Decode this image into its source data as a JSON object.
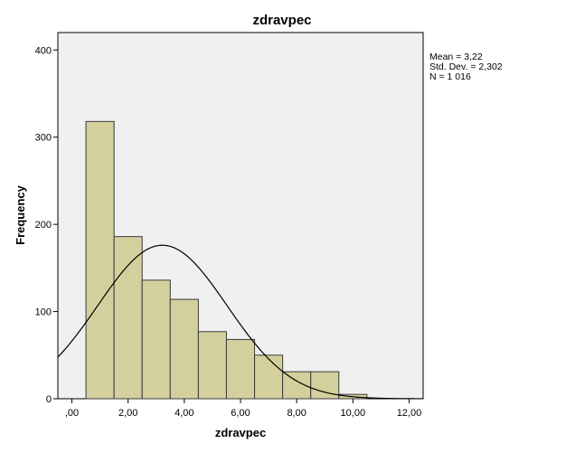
{
  "chart_data": {
    "type": "bar",
    "title": "zdravpec",
    "xlabel": "zdravpec",
    "ylabel": "Frequency",
    "xlim": [
      -0.5,
      12.5
    ],
    "ylim": [
      0,
      420
    ],
    "grid": false,
    "x_ticks": [
      0,
      2,
      4,
      6,
      8,
      10,
      12
    ],
    "x_tick_labels": [
      ",00",
      "2,00",
      "4,00",
      "6,00",
      "8,00",
      "10,00",
      "12,00"
    ],
    "y_ticks": [
      0,
      100,
      200,
      300,
      400
    ],
    "y_tick_labels": [
      "0",
      "100",
      "200",
      "300",
      "400"
    ],
    "bin_width": 1,
    "bins": [
      {
        "center": 1,
        "value": 318
      },
      {
        "center": 2,
        "value": 186
      },
      {
        "center": 3,
        "value": 136
      },
      {
        "center": 4,
        "value": 114
      },
      {
        "center": 5,
        "value": 77
      },
      {
        "center": 6,
        "value": 68
      },
      {
        "center": 7,
        "value": 50
      },
      {
        "center": 8,
        "value": 31
      },
      {
        "center": 9,
        "value": 31
      },
      {
        "center": 10,
        "value": 5
      }
    ],
    "normal_curve": {
      "mean": 3.22,
      "sd": 2.302,
      "n": 1016,
      "bin_width": 1
    },
    "stats": [
      "Mean = 3,22",
      "Std. Dev. = 2,302",
      "N = 1 016"
    ],
    "colors": {
      "bar_fill": "#d4d09d",
      "bar_stroke": "#3a3a3a",
      "plot_background": "#f0f0f0",
      "curve": "#000000"
    }
  }
}
